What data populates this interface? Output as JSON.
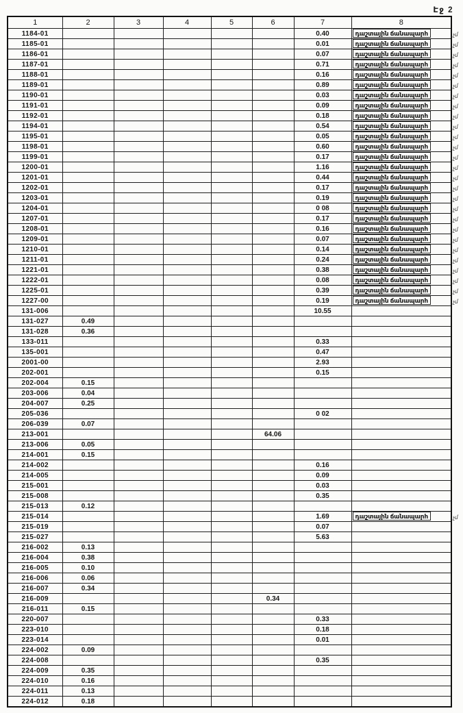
{
  "page_label": "Էջ 2",
  "table": {
    "column_headers": [
      "1",
      "2",
      "3",
      "4",
      "5",
      "6",
      "7",
      "8"
    ],
    "road_label": "դաշտային ճանապարհ",
    "margin_note": "չմ",
    "colors": {
      "ink": "#1d1d1d",
      "paper": "#fbfbf9",
      "border": "#232323"
    },
    "rows": [
      {
        "code": "1184-01",
        "c7": "0.40",
        "road": true,
        "note": true
      },
      {
        "code": "1185-01",
        "c7": "0.01",
        "road": true,
        "note": true
      },
      {
        "code": "1186-01",
        "c7": "0.07",
        "road": true,
        "note": true
      },
      {
        "code": "1187-01",
        "c7": "0.71",
        "road": true,
        "note": true
      },
      {
        "code": "1188-01",
        "c7": "0.16",
        "road": true,
        "note": true
      },
      {
        "code": "1189-01",
        "c7": "0.89",
        "road": true,
        "note": true
      },
      {
        "code": "1190-01",
        "c7": "0.03",
        "road": true,
        "note": true
      },
      {
        "code": "1191-01",
        "c7": "0.09",
        "road": true,
        "note": true
      },
      {
        "code": "1192-01",
        "c7": "0.18",
        "road": true,
        "note": true
      },
      {
        "code": "1194-01",
        "c7": "0.54",
        "road": true,
        "note": true
      },
      {
        "code": "1195-01",
        "c7": "0.05",
        "road": true,
        "note": true
      },
      {
        "code": "1198-01",
        "c7": "0.60",
        "road": true,
        "note": true
      },
      {
        "code": "1199-01",
        "c7": "0.17",
        "road": true,
        "note": true
      },
      {
        "code": "1200-01",
        "c7": "1.16",
        "road": true,
        "note": true
      },
      {
        "code": "1201-01",
        "c7": "0.44",
        "road": true,
        "note": true
      },
      {
        "code": "1202-01",
        "c7": "0.17",
        "road": true,
        "note": true
      },
      {
        "code": "1203-01",
        "c7": "0.19",
        "road": true,
        "note": true
      },
      {
        "code": "1204-01",
        "c7": "0 08",
        "road": true,
        "note": true
      },
      {
        "code": "1207-01",
        "c7": "0.17",
        "road": true,
        "note": true
      },
      {
        "code": "1208-01",
        "c7": "0.16",
        "road": true,
        "note": true
      },
      {
        "code": "1209-01",
        "c7": "0.07",
        "road": true,
        "note": true
      },
      {
        "code": "1210-01",
        "c7": "0.14",
        "road": true,
        "note": true
      },
      {
        "code": "1211-01",
        "c7": "0.24",
        "road": true,
        "note": true
      },
      {
        "code": "1221-01",
        "c7": "0.38",
        "road": true,
        "note": true
      },
      {
        "code": "1222-01",
        "c7": "0.08",
        "road": true,
        "note": true
      },
      {
        "code": "1225-01",
        "c7": "0.39",
        "road": true,
        "note": true
      },
      {
        "code": "1227-00",
        "c7": "0.19",
        "road": true,
        "note": true
      },
      {
        "code": "131-006",
        "c7": "10.55",
        "road": false,
        "note": false
      },
      {
        "code": "131-027",
        "c2": "0.49",
        "road": false,
        "note": false
      },
      {
        "code": "131-028",
        "c2": "0.36",
        "road": false,
        "note": false
      },
      {
        "code": "133-011",
        "c7": "0.33",
        "road": false,
        "note": false
      },
      {
        "code": "135-001",
        "c7": "0.47",
        "road": false,
        "note": false
      },
      {
        "code": "2001-00",
        "c7": "2.93",
        "road": false,
        "note": false
      },
      {
        "code": "202-001",
        "c7": "0.15",
        "road": false,
        "note": false
      },
      {
        "code": "202-004",
        "c2": "0.15",
        "road": false,
        "note": false
      },
      {
        "code": "203-006",
        "c2": "0.04",
        "road": false,
        "note": false
      },
      {
        "code": "204-007",
        "c2": "0.25",
        "road": false,
        "note": false
      },
      {
        "code": "205-036",
        "c7": "0 02",
        "road": false,
        "note": false
      },
      {
        "code": "206-039",
        "c2": "0.07",
        "road": false,
        "note": false
      },
      {
        "code": "213-001",
        "c6": "64.06",
        "road": false,
        "note": false
      },
      {
        "code": "213-006",
        "c2": "0.05",
        "road": false,
        "note": false
      },
      {
        "code": "214-001",
        "c2": "0.15",
        "road": false,
        "note": false
      },
      {
        "code": "214-002",
        "c7": "0.16",
        "road": false,
        "note": false
      },
      {
        "code": "214-005",
        "c7": "0.09",
        "road": false,
        "note": false
      },
      {
        "code": "215-001",
        "c7": "0.03",
        "road": false,
        "note": false
      },
      {
        "code": "215-008",
        "c7": "0.35",
        "road": false,
        "note": false
      },
      {
        "code": "215-013",
        "c2": "0.12",
        "road": false,
        "note": false
      },
      {
        "code": "215-014",
        "c7": "1.69",
        "road": true,
        "note": true
      },
      {
        "code": "215-019",
        "c7": "0.07",
        "road": false,
        "note": false
      },
      {
        "code": "215-027",
        "c7": "5.63",
        "road": false,
        "note": false
      },
      {
        "code": "216-002",
        "c2": "0.13",
        "road": false,
        "note": false
      },
      {
        "code": "216-004",
        "c2": "0.38",
        "road": false,
        "note": false
      },
      {
        "code": "216-005",
        "c2": "0.10",
        "road": false,
        "note": false
      },
      {
        "code": "216-006",
        "c2": "0.06",
        "road": false,
        "note": false
      },
      {
        "code": "216-007",
        "c2": "0.34",
        "road": false,
        "note": false
      },
      {
        "code": "216-009",
        "c6": "0.34",
        "road": false,
        "note": false
      },
      {
        "code": "216-011",
        "c2": "0.15",
        "road": false,
        "note": false
      },
      {
        "code": "220-007",
        "c7": "0.33",
        "road": false,
        "note": false
      },
      {
        "code": "223-010",
        "c7": "0.18",
        "road": false,
        "note": false
      },
      {
        "code": "223-014",
        "c7": "0.01",
        "road": false,
        "note": false
      },
      {
        "code": "224-002",
        "c2": "0.09",
        "road": false,
        "note": false
      },
      {
        "code": "224-008",
        "c7": "0.35",
        "road": false,
        "note": false
      },
      {
        "code": "224-009",
        "c2": "0.35",
        "road": false,
        "note": false
      },
      {
        "code": "224-010",
        "c2": "0.16",
        "road": false,
        "note": false
      },
      {
        "code": "224-011",
        "c2": "0.13",
        "road": false,
        "note": false
      },
      {
        "code": "224-012",
        "c2": "0.18",
        "road": false,
        "note": false
      }
    ]
  }
}
